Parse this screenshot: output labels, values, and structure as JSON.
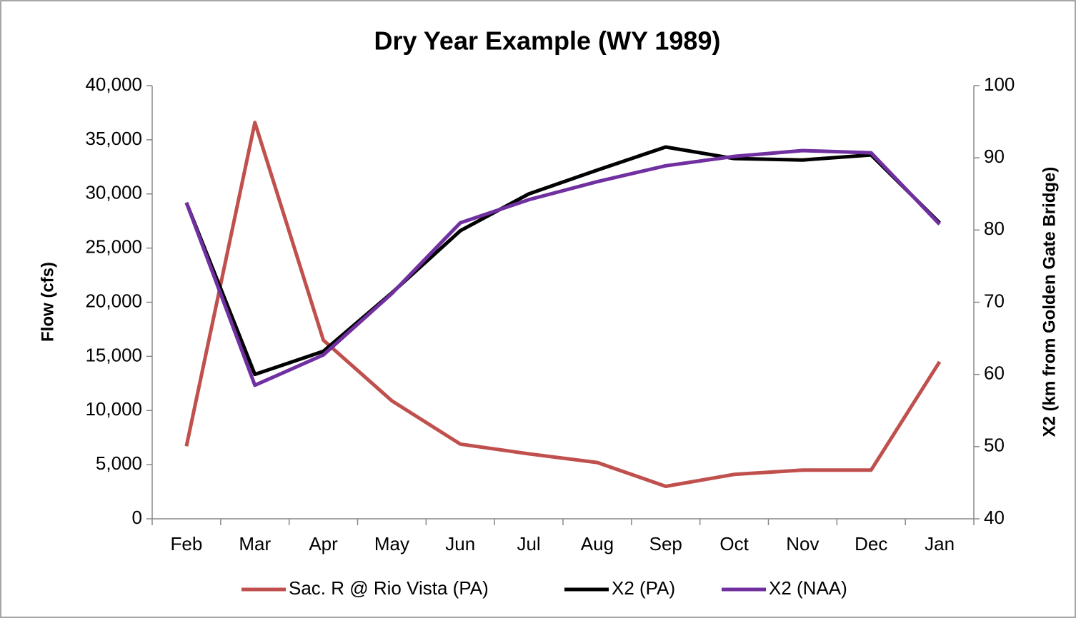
{
  "chart_data": {
    "type": "line",
    "title": "Dry Year Example (WY 1989)",
    "ylabel": "Flow (cfs)",
    "y2label": "X2 (km from Golden Gate Bridge)",
    "categories": [
      "Feb",
      "Mar",
      "Apr",
      "May",
      "Jun",
      "Jul",
      "Aug",
      "Sep",
      "Oct",
      "Nov",
      "Dec",
      "Jan"
    ],
    "series": [
      {
        "name": "Sac. R @ Rio Vista (PA)",
        "color": "#c0504d",
        "values": [
          6700,
          36600,
          16500,
          10900,
          6900,
          6000,
          5200,
          3000,
          4100,
          4500,
          4500,
          14500
        ]
      },
      {
        "name": "X2 (PA)",
        "color": "#000000",
        "axis": "y2",
        "values": [
          83.8,
          60.0,
          63.2,
          71.3,
          79.9,
          85.0,
          88.3,
          91.5,
          89.9,
          89.7,
          90.4,
          81.0
        ]
      },
      {
        "name": "X2 (NAA)",
        "color": "#7030a0",
        "axis": "y2",
        "values": [
          83.8,
          58.5,
          62.7,
          71.2,
          81.0,
          84.2,
          86.7,
          88.9,
          90.2,
          91.0,
          90.7,
          80.8
        ]
      }
    ],
    "ylim": [
      0,
      40000
    ],
    "yticks": [
      0,
      {
        "value": 5000,
        "label": "5,000"
      },
      {
        "value": 10000,
        "label": "10,000"
      },
      {
        "value": 15000,
        "label": "15,000"
      },
      {
        "value": 20000,
        "label": "20,000"
      },
      {
        "value": 25000,
        "label": "25,000"
      },
      {
        "value": 30000,
        "label": "30,000"
      },
      {
        "value": 35000,
        "label": "35,000"
      },
      {
        "value": 40000,
        "label": "40,000"
      }
    ],
    "y2lim": [
      40,
      100
    ],
    "y2ticks": [
      40,
      50,
      60,
      70,
      80,
      90,
      100
    ],
    "grid": false,
    "legend": "bottom"
  }
}
